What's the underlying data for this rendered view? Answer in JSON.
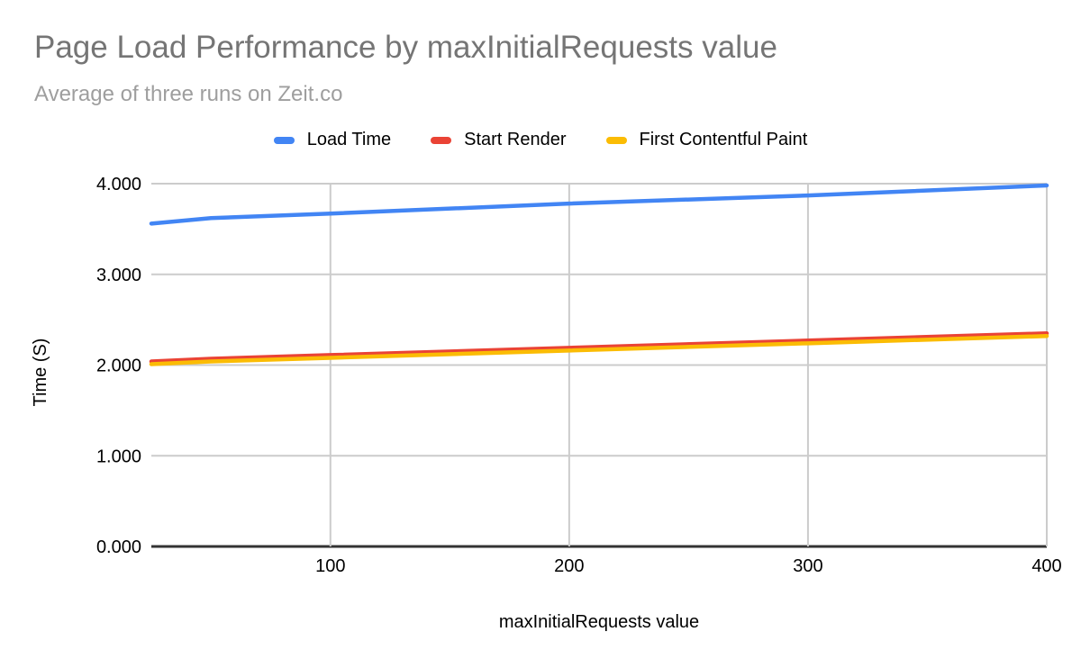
{
  "chart_data": {
    "type": "line",
    "title": "Page Load Performance by maxInitialRequests value",
    "subtitle": "Average of three runs on Zeit.co",
    "xlabel": "maxInitialRequests value",
    "ylabel": "Time (S)",
    "x": [
      25,
      50,
      100,
      200,
      300,
      400
    ],
    "series": [
      {
        "name": "Load Time",
        "color": "#4285F4",
        "values": [
          3.56,
          3.62,
          3.67,
          3.78,
          3.87,
          3.98
        ]
      },
      {
        "name": "Start Render",
        "color": "#EA4335",
        "values": [
          2.04,
          2.07,
          2.11,
          2.19,
          2.27,
          2.35
        ]
      },
      {
        "name": "First Contentful Paint",
        "color": "#FBBC04",
        "values": [
          2.01,
          2.04,
          2.08,
          2.16,
          2.24,
          2.32
        ]
      }
    ],
    "xlim": [
      25,
      400
    ],
    "ylim": [
      0,
      4
    ],
    "x_ticks": [
      100,
      200,
      300,
      400
    ],
    "y_ticks": [
      {
        "value": 0,
        "label": "0.000"
      },
      {
        "value": 1,
        "label": "1.000"
      },
      {
        "value": 2,
        "label": "2.000"
      },
      {
        "value": 3,
        "label": "3.000"
      },
      {
        "value": 4,
        "label": "4.000"
      }
    ],
    "grid": true,
    "legend_position": "top"
  },
  "colors": {
    "background": "#ffffff",
    "title_text": "#757575",
    "subtitle_text": "#9e9e9e",
    "gridline": "#cccccc",
    "axis_line": "#333333",
    "tick_text": "#000000",
    "legend_text": "#000000"
  }
}
